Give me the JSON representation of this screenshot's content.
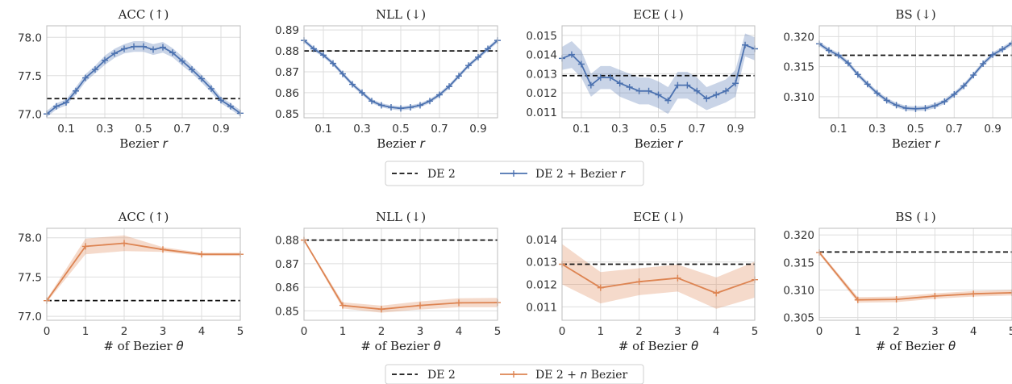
{
  "colors": {
    "bezier_r": "#4c72b0",
    "bezier_n": "#dd8452",
    "baseline": "#111111"
  },
  "legends": [
    {
      "baseline": "DE 2",
      "series_prefix": "DE 2 + Bezier ",
      "series_var": "r"
    },
    {
      "baseline": "DE 2",
      "series_prefix": "DE 2 + ",
      "series_var": "n",
      "series_suffix": " Bezier"
    }
  ],
  "chart_data": [
    {
      "type": "line",
      "title": "ACC (↑)",
      "xlabel": "Bezier",
      "xlabel_var": "r",
      "x": [
        0.0,
        0.05,
        0.1,
        0.15,
        0.2,
        0.25,
        0.3,
        0.35,
        0.4,
        0.45,
        0.5,
        0.55,
        0.6,
        0.65,
        0.7,
        0.75,
        0.8,
        0.85,
        0.9,
        0.95,
        1.0
      ],
      "series": [
        {
          "values": [
            77.0,
            77.1,
            77.15,
            77.3,
            77.47,
            77.58,
            77.7,
            77.79,
            77.85,
            77.88,
            77.88,
            77.84,
            77.87,
            77.8,
            77.69,
            77.58,
            77.46,
            77.33,
            77.18,
            77.1,
            77.01
          ],
          "band": [
            0.04,
            0.04,
            0.04,
            0.05,
            0.05,
            0.05,
            0.06,
            0.06,
            0.06,
            0.07,
            0.07,
            0.07,
            0.07,
            0.06,
            0.06,
            0.05,
            0.05,
            0.05,
            0.04,
            0.04,
            0.04
          ]
        }
      ],
      "baseline": 77.2,
      "xlim": [
        0.0,
        1.0
      ],
      "ylim": [
        76.95,
        78.15
      ],
      "xticks": [
        0.1,
        0.3,
        0.5,
        0.7,
        0.9
      ],
      "xtick_labels": [
        "0.1",
        "0.3",
        "0.5",
        "0.7",
        "0.9"
      ],
      "yticks": [
        77.0,
        77.5,
        78.0
      ],
      "ytick_labels": [
        "77.0",
        "77.5",
        "78.0"
      ],
      "grid": true
    },
    {
      "type": "line",
      "title": "NLL (↓)",
      "xlabel": "Bezier",
      "xlabel_var": "r",
      "x": [
        0.0,
        0.05,
        0.1,
        0.15,
        0.2,
        0.25,
        0.3,
        0.35,
        0.4,
        0.45,
        0.5,
        0.55,
        0.6,
        0.65,
        0.7,
        0.75,
        0.8,
        0.85,
        0.9,
        0.95,
        1.0
      ],
      "series": [
        {
          "values": [
            0.885,
            0.881,
            0.878,
            0.874,
            0.869,
            0.864,
            0.86,
            0.856,
            0.854,
            0.853,
            0.8525,
            0.853,
            0.854,
            0.856,
            0.859,
            0.863,
            0.868,
            0.873,
            0.877,
            0.881,
            0.885
          ],
          "band": [
            0.001,
            0.001,
            0.001,
            0.001,
            0.001,
            0.001,
            0.001,
            0.001,
            0.001,
            0.001,
            0.001,
            0.001,
            0.001,
            0.001,
            0.001,
            0.001,
            0.001,
            0.001,
            0.001,
            0.001,
            0.001
          ]
        }
      ],
      "baseline": 0.88,
      "xlim": [
        0.0,
        1.0
      ],
      "ylim": [
        0.848,
        0.892
      ],
      "xticks": [
        0.1,
        0.3,
        0.5,
        0.7,
        0.9
      ],
      "xtick_labels": [
        "0.1",
        "0.3",
        "0.5",
        "0.7",
        "0.9"
      ],
      "yticks": [
        0.85,
        0.86,
        0.87,
        0.88,
        0.89
      ],
      "ytick_labels": [
        "0.85",
        "0.86",
        "0.87",
        "0.88",
        "0.89"
      ],
      "grid": true
    },
    {
      "type": "line",
      "title": "ECE (↓)",
      "xlabel": "Bezier",
      "xlabel_var": "r",
      "x": [
        0.0,
        0.05,
        0.1,
        0.15,
        0.2,
        0.25,
        0.3,
        0.35,
        0.4,
        0.45,
        0.5,
        0.55,
        0.6,
        0.65,
        0.7,
        0.75,
        0.8,
        0.85,
        0.9,
        0.95,
        1.0
      ],
      "series": [
        {
          "values": [
            0.0138,
            0.014,
            0.0135,
            0.0124,
            0.0128,
            0.0128,
            0.0125,
            0.0123,
            0.0121,
            0.0121,
            0.0119,
            0.0116,
            0.0124,
            0.0124,
            0.0121,
            0.0117,
            0.0119,
            0.0121,
            0.0125,
            0.0145,
            0.0143
          ],
          "band": [
            0.0006,
            0.0007,
            0.0007,
            0.0006,
            0.0006,
            0.0006,
            0.0007,
            0.0007,
            0.0007,
            0.0007,
            0.0007,
            0.0007,
            0.0007,
            0.0007,
            0.0007,
            0.0006,
            0.0006,
            0.0006,
            0.0007,
            0.0006,
            0.0006
          ]
        }
      ],
      "baseline": 0.0129,
      "xlim": [
        0.0,
        1.0
      ],
      "ylim": [
        0.0107,
        0.0155
      ],
      "xticks": [
        0.1,
        0.3,
        0.5,
        0.7,
        0.9
      ],
      "xtick_labels": [
        "0.1",
        "0.3",
        "0.5",
        "0.7",
        "0.9"
      ],
      "yticks": [
        0.011,
        0.012,
        0.013,
        0.014,
        0.015
      ],
      "ytick_labels": [
        "0.011",
        "0.012",
        "0.013",
        "0.014",
        "0.015"
      ],
      "grid": true
    },
    {
      "type": "line",
      "title": "BS (↓)",
      "xlabel": "Bezier",
      "xlabel_var": "r",
      "x": [
        0.0,
        0.05,
        0.1,
        0.15,
        0.2,
        0.25,
        0.3,
        0.35,
        0.4,
        0.45,
        0.5,
        0.55,
        0.6,
        0.65,
        0.7,
        0.75,
        0.8,
        0.85,
        0.9,
        0.95,
        1.0
      ],
      "series": [
        {
          "values": [
            0.3188,
            0.3177,
            0.3169,
            0.3156,
            0.3137,
            0.3121,
            0.3106,
            0.3094,
            0.3086,
            0.3081,
            0.308,
            0.3081,
            0.3085,
            0.3092,
            0.3104,
            0.3118,
            0.3136,
            0.3155,
            0.317,
            0.3179,
            0.3189
          ],
          "band": [
            0.0004,
            0.0004,
            0.0004,
            0.0004,
            0.0004,
            0.0004,
            0.0004,
            0.0004,
            0.0004,
            0.0004,
            0.0004,
            0.0004,
            0.0004,
            0.0004,
            0.0004,
            0.0004,
            0.0004,
            0.0004,
            0.0004,
            0.0004,
            0.0004
          ]
        }
      ],
      "baseline": 0.3169,
      "xlim": [
        0.0,
        1.0
      ],
      "ylim": [
        0.3065,
        0.3218
      ],
      "xticks": [
        0.1,
        0.3,
        0.5,
        0.7,
        0.9
      ],
      "xtick_labels": [
        "0.1",
        "0.3",
        "0.5",
        "0.7",
        "0.9"
      ],
      "yticks": [
        0.31,
        0.315,
        0.32
      ],
      "ytick_labels": [
        "0.310",
        "0.315",
        "0.320"
      ],
      "grid": true
    },
    {
      "type": "line",
      "title": "ACC (↑)",
      "xlabel": "# of Bezier",
      "xlabel_var": "θ",
      "x": [
        0,
        1,
        2,
        3,
        4,
        5
      ],
      "series": [
        {
          "values": [
            77.2,
            77.89,
            77.93,
            77.85,
            77.79,
            77.79
          ],
          "band": [
            0.02,
            0.1,
            0.1,
            0.03,
            0.02,
            0.02
          ]
        }
      ],
      "baseline": 77.2,
      "xlim": [
        0,
        5
      ],
      "ylim": [
        76.95,
        78.12
      ],
      "xticks": [
        0,
        1,
        2,
        3,
        4,
        5
      ],
      "xtick_labels": [
        "0",
        "1",
        "2",
        "3",
        "4",
        "5"
      ],
      "yticks": [
        77.0,
        77.5,
        78.0
      ],
      "ytick_labels": [
        "77.0",
        "77.5",
        "78.0"
      ],
      "grid": true
    },
    {
      "type": "line",
      "title": "NLL (↓)",
      "xlabel": "# of Bezier",
      "xlabel_var": "θ",
      "x": [
        0,
        1,
        2,
        3,
        4,
        5
      ],
      "series": [
        {
          "values": [
            0.88,
            0.8523,
            0.8507,
            0.8523,
            0.8534,
            0.8535
          ],
          "band": [
            0.0004,
            0.0013,
            0.0015,
            0.0017,
            0.0019,
            0.002
          ]
        }
      ],
      "baseline": 0.88,
      "xlim": [
        0,
        5
      ],
      "ylim": [
        0.846,
        0.885
      ],
      "xticks": [
        0,
        1,
        2,
        3,
        4,
        5
      ],
      "xtick_labels": [
        "0",
        "1",
        "2",
        "3",
        "4",
        "5"
      ],
      "yticks": [
        0.85,
        0.86,
        0.87,
        0.88
      ],
      "ytick_labels": [
        "0.85",
        "0.86",
        "0.87",
        "0.88"
      ],
      "grid": true
    },
    {
      "type": "line",
      "title": "ECE (↓)",
      "xlabel": "# of Bezier",
      "xlabel_var": "θ",
      "x": [
        0,
        1,
        2,
        3,
        4,
        5
      ],
      "series": [
        {
          "values": [
            0.0129,
            0.01185,
            0.01212,
            0.01228,
            0.01161,
            0.01221
          ],
          "band": [
            0.0009,
            0.0007,
            0.0006,
            0.0006,
            0.0007,
            0.0008
          ]
        }
      ],
      "baseline": 0.0129,
      "xlim": [
        0,
        5
      ],
      "ylim": [
        0.0104,
        0.0145
      ],
      "xticks": [
        0,
        1,
        2,
        3,
        4,
        5
      ],
      "xtick_labels": [
        "0",
        "1",
        "2",
        "3",
        "4",
        "5"
      ],
      "yticks": [
        0.011,
        0.012,
        0.013,
        0.014
      ],
      "ytick_labels": [
        "0.011",
        "0.012",
        "0.013",
        "0.014"
      ],
      "grid": true
    },
    {
      "type": "line",
      "title": "BS (↓)",
      "xlabel": "# of Bezier",
      "xlabel_var": "θ",
      "x": [
        0,
        1,
        2,
        3,
        4,
        5
      ],
      "series": [
        {
          "values": [
            0.3168,
            0.3082,
            0.3083,
            0.3089,
            0.3093,
            0.3095
          ],
          "band": [
            0.0003,
            0.0005,
            0.0005,
            0.0005,
            0.0005,
            0.0005
          ]
        }
      ],
      "baseline": 0.3169,
      "xlim": [
        0,
        5
      ],
      "ylim": [
        0.3045,
        0.3212
      ],
      "xticks": [
        0,
        1,
        2,
        3,
        4,
        5
      ],
      "xtick_labels": [
        "0",
        "1",
        "2",
        "3",
        "4",
        "5"
      ],
      "yticks": [
        0.305,
        0.31,
        0.315,
        0.32
      ],
      "ytick_labels": [
        "0.305",
        "0.310",
        "0.315",
        "0.320"
      ],
      "grid": true
    }
  ]
}
